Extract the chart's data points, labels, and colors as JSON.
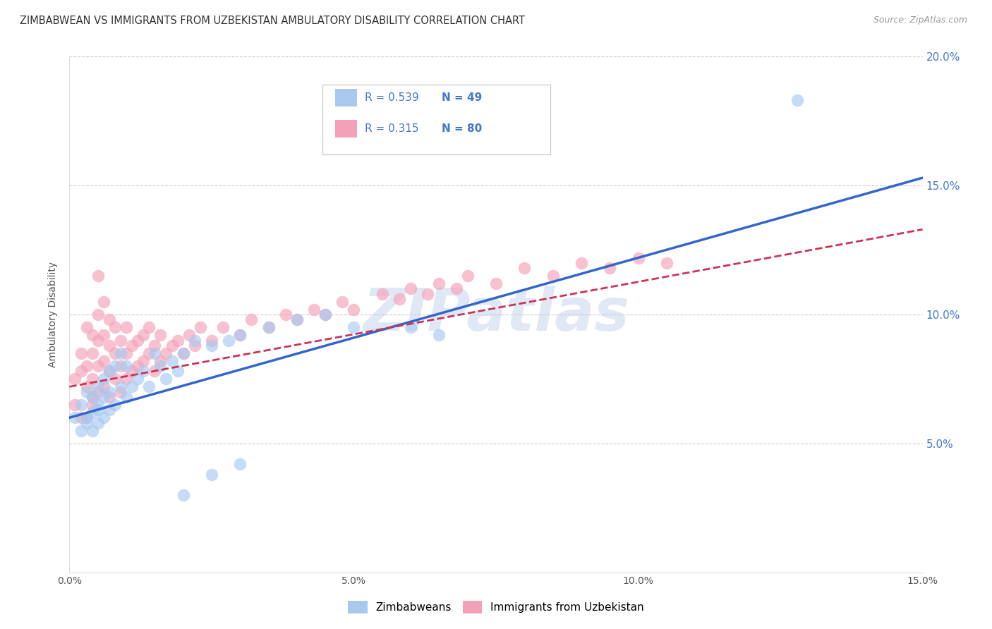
{
  "title": "ZIMBABWEAN VS IMMIGRANTS FROM UZBEKISTAN AMBULATORY DISABILITY CORRELATION CHART",
  "source": "Source: ZipAtlas.com",
  "ylabel": "Ambulatory Disability",
  "legend_label1": "Zimbabweans",
  "legend_label2": "Immigrants from Uzbekistan",
  "r1": 0.539,
  "n1": 49,
  "r2": 0.315,
  "n2": 80,
  "xmin": 0.0,
  "xmax": 0.15,
  "ymin": 0.0,
  "ymax": 0.2,
  "color1": "#a8c8f0",
  "color2": "#f4a0b8",
  "line_color1": "#3366cc",
  "line_color2": "#cc3355",
  "background_color": "#ffffff",
  "watermark": "ZIPatlas",
  "line1_x0": 0.0,
  "line1_y0": 0.06,
  "line1_x1": 0.15,
  "line1_y1": 0.153,
  "line2_x0": 0.0,
  "line2_y0": 0.072,
  "line2_x1": 0.15,
  "line2_y1": 0.133,
  "scatter1_x": [
    0.001,
    0.002,
    0.002,
    0.003,
    0.003,
    0.003,
    0.004,
    0.004,
    0.004,
    0.005,
    0.005,
    0.005,
    0.005,
    0.006,
    0.006,
    0.006,
    0.007,
    0.007,
    0.007,
    0.008,
    0.008,
    0.009,
    0.009,
    0.01,
    0.01,
    0.011,
    0.012,
    0.013,
    0.014,
    0.015,
    0.016,
    0.017,
    0.018,
    0.019,
    0.02,
    0.022,
    0.025,
    0.028,
    0.03,
    0.035,
    0.04,
    0.045,
    0.05,
    0.06,
    0.065,
    0.03,
    0.025,
    0.02,
    0.128
  ],
  "scatter1_y": [
    0.06,
    0.055,
    0.065,
    0.06,
    0.058,
    0.07,
    0.062,
    0.068,
    0.055,
    0.063,
    0.058,
    0.072,
    0.065,
    0.06,
    0.075,
    0.068,
    0.07,
    0.063,
    0.078,
    0.065,
    0.08,
    0.072,
    0.085,
    0.068,
    0.08,
    0.072,
    0.075,
    0.078,
    0.072,
    0.085,
    0.08,
    0.075,
    0.082,
    0.078,
    0.085,
    0.09,
    0.088,
    0.09,
    0.092,
    0.095,
    0.098,
    0.1,
    0.095,
    0.095,
    0.092,
    0.042,
    0.038,
    0.03,
    0.183
  ],
  "scatter2_x": [
    0.001,
    0.001,
    0.002,
    0.002,
    0.002,
    0.003,
    0.003,
    0.003,
    0.003,
    0.004,
    0.004,
    0.004,
    0.004,
    0.004,
    0.005,
    0.005,
    0.005,
    0.005,
    0.005,
    0.006,
    0.006,
    0.006,
    0.006,
    0.007,
    0.007,
    0.007,
    0.007,
    0.008,
    0.008,
    0.008,
    0.009,
    0.009,
    0.009,
    0.01,
    0.01,
    0.01,
    0.011,
    0.011,
    0.012,
    0.012,
    0.013,
    0.013,
    0.014,
    0.014,
    0.015,
    0.015,
    0.016,
    0.016,
    0.017,
    0.018,
    0.019,
    0.02,
    0.021,
    0.022,
    0.023,
    0.025,
    0.027,
    0.03,
    0.032,
    0.035,
    0.038,
    0.04,
    0.043,
    0.045,
    0.048,
    0.05,
    0.055,
    0.058,
    0.06,
    0.063,
    0.065,
    0.068,
    0.07,
    0.075,
    0.08,
    0.085,
    0.09,
    0.095,
    0.1,
    0.105
  ],
  "scatter2_y": [
    0.065,
    0.075,
    0.06,
    0.078,
    0.085,
    0.06,
    0.072,
    0.08,
    0.095,
    0.065,
    0.075,
    0.085,
    0.092,
    0.068,
    0.07,
    0.08,
    0.09,
    0.1,
    0.115,
    0.072,
    0.082,
    0.092,
    0.105,
    0.068,
    0.078,
    0.088,
    0.098,
    0.075,
    0.085,
    0.095,
    0.07,
    0.08,
    0.09,
    0.075,
    0.085,
    0.095,
    0.078,
    0.088,
    0.08,
    0.09,
    0.082,
    0.092,
    0.085,
    0.095,
    0.078,
    0.088,
    0.082,
    0.092,
    0.085,
    0.088,
    0.09,
    0.085,
    0.092,
    0.088,
    0.095,
    0.09,
    0.095,
    0.092,
    0.098,
    0.095,
    0.1,
    0.098,
    0.102,
    0.1,
    0.105,
    0.102,
    0.108,
    0.106,
    0.11,
    0.108,
    0.112,
    0.11,
    0.115,
    0.112,
    0.118,
    0.115,
    0.12,
    0.118,
    0.122,
    0.12
  ]
}
